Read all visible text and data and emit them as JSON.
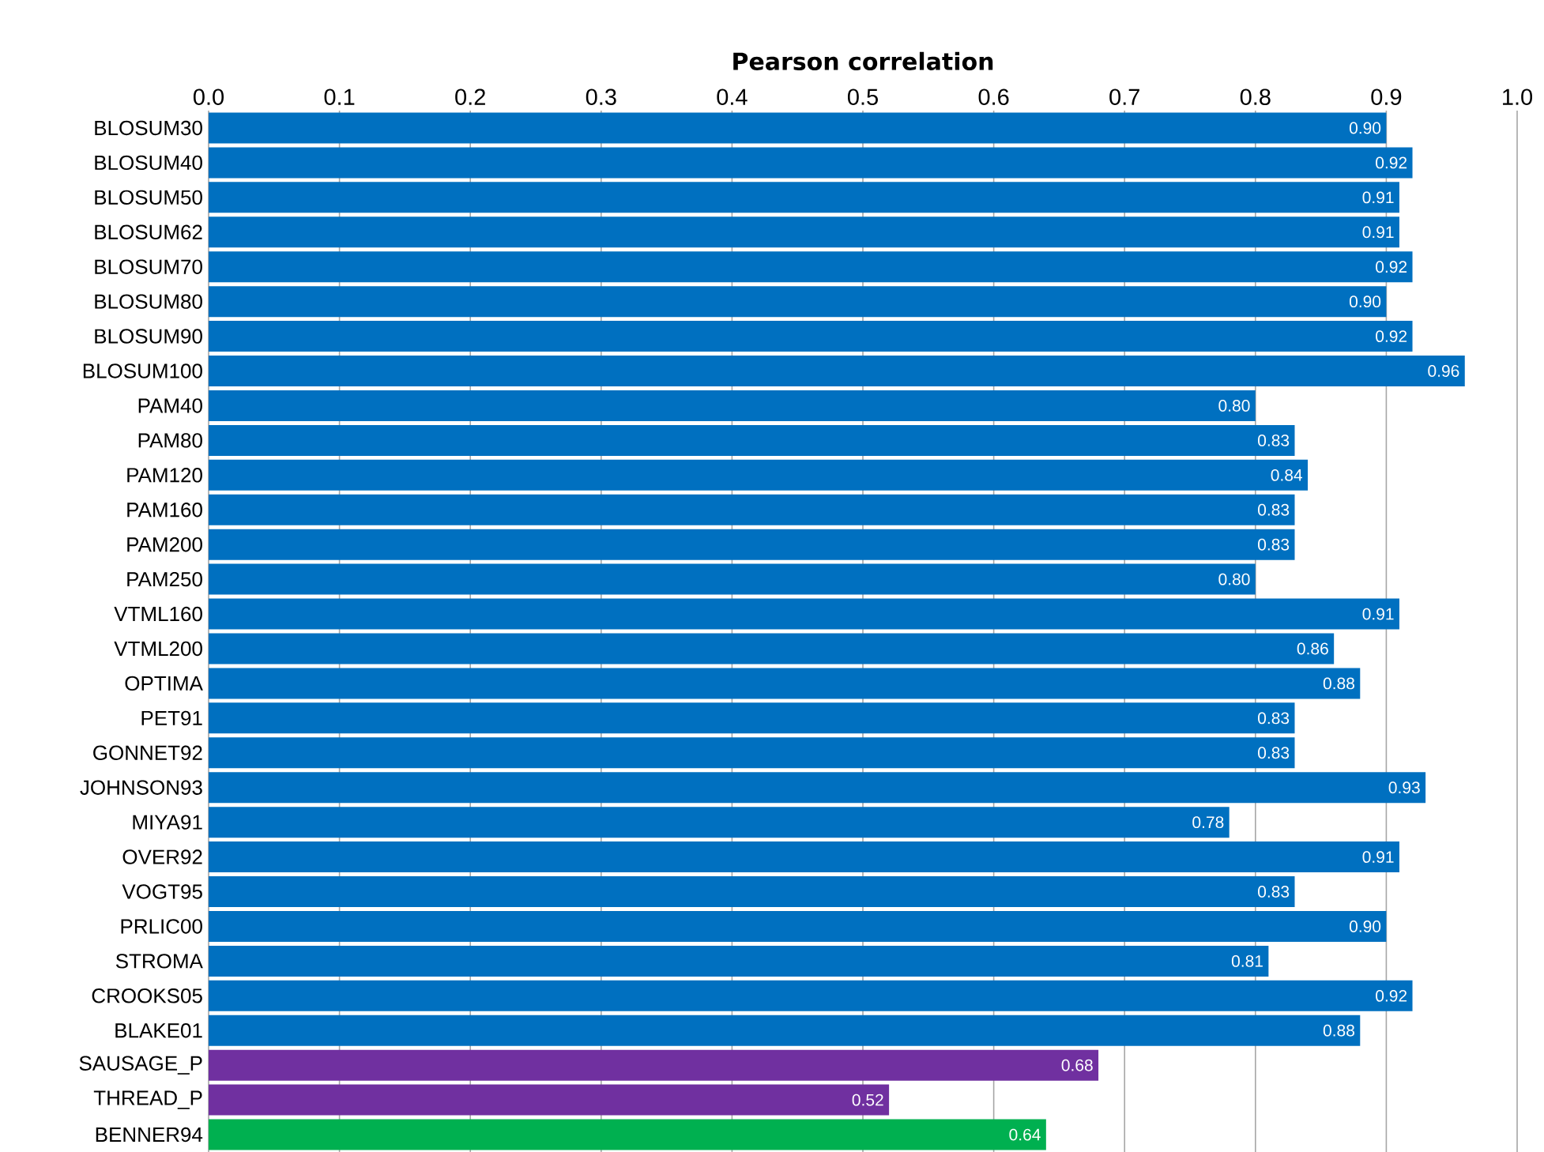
{
  "chart_data": {
    "type": "bar",
    "orientation": "horizontal",
    "xlabel": "Pearson correlation",
    "categories": [
      "BLOSUM30",
      "BLOSUM40",
      "BLOSUM50",
      "BLOSUM62",
      "BLOSUM70",
      "BLOSUM80",
      "BLOSUM90",
      "BLOSUM100",
      "PAM40",
      "PAM80",
      "PAM120",
      "PAM160",
      "PAM200",
      "PAM250",
      "VTML160",
      "VTML200",
      "OPTIMA",
      "PET91",
      "GONNET92",
      "JOHNSON93",
      "MIYA91",
      "OVER92",
      "VOGT95",
      "PRLIC00",
      "STROMA",
      "CROOKS05",
      "BLAKE01",
      "SAUSAGE_P",
      "THREAD_P",
      "BENNER94"
    ],
    "values": [
      0.9,
      0.92,
      0.91,
      0.91,
      0.92,
      0.9,
      0.92,
      0.96,
      0.8,
      0.83,
      0.84,
      0.83,
      0.83,
      0.8,
      0.91,
      0.86,
      0.88,
      0.83,
      0.83,
      0.93,
      0.78,
      0.91,
      0.83,
      0.9,
      0.81,
      0.92,
      0.88,
      0.68,
      0.52,
      0.64
    ],
    "colors": [
      "#0070c0",
      "#0070c0",
      "#0070c0",
      "#0070c0",
      "#0070c0",
      "#0070c0",
      "#0070c0",
      "#0070c0",
      "#0070c0",
      "#0070c0",
      "#0070c0",
      "#0070c0",
      "#0070c0",
      "#0070c0",
      "#0070c0",
      "#0070c0",
      "#0070c0",
      "#0070c0",
      "#0070c0",
      "#0070c0",
      "#0070c0",
      "#0070c0",
      "#0070c0",
      "#0070c0",
      "#0070c0",
      "#0070c0",
      "#0070c0",
      "#7030a0",
      "#7030a0",
      "#00b050"
    ],
    "xlim": [
      0,
      1
    ],
    "xticks": [
      {
        "value": 0,
        "label": "0.0"
      },
      {
        "value": 0.1,
        "label": "0.1"
      },
      {
        "value": 0.2,
        "label": "0.2"
      },
      {
        "value": 0.3,
        "label": "0.3"
      },
      {
        "value": 0.4,
        "label": "0.4"
      },
      {
        "value": 0.5,
        "label": "0.5"
      },
      {
        "value": 0.6,
        "label": "0.6"
      },
      {
        "value": 0.7,
        "label": "0.7"
      },
      {
        "value": 0.8,
        "label": "0.8"
      },
      {
        "value": 0.9,
        "label": "0.9"
      },
      {
        "value": 1,
        "label": "1.0"
      }
    ],
    "value_labels": [
      "0.90",
      "0.92",
      "0.91",
      "0.91",
      "0.92",
      "0.90",
      "0.92",
      "0.96",
      "0.80",
      "0.83",
      "0.84",
      "0.83",
      "0.83",
      "0.80",
      "0.91",
      "0.86",
      "0.88",
      "0.83",
      "0.83",
      "0.93",
      "0.78",
      "0.91",
      "0.83",
      "0.90",
      "0.81",
      "0.92",
      "0.88",
      "0.68",
      "0.52",
      "0.64"
    ],
    "grid": "x"
  }
}
